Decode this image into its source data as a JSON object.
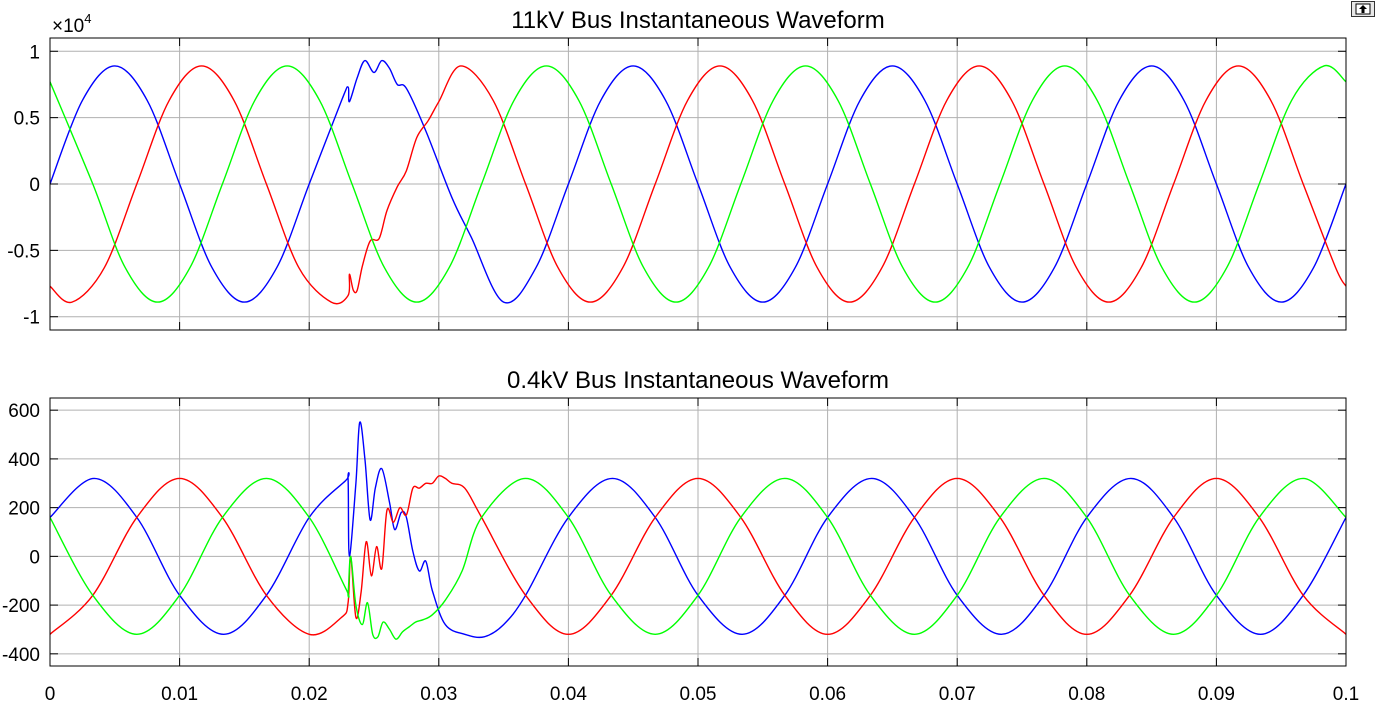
{
  "toolbar": {
    "undock_icon": "undock-arrow-icon"
  },
  "colors": {
    "phase_a": "#ff0000",
    "phase_b": "#0000ff",
    "phase_c": "#00ff00",
    "grid": "#b0b0b0",
    "axes": "#000000"
  },
  "chart_data": [
    {
      "type": "line",
      "title": "11kV Bus Instantaneous Waveform",
      "xlabel": "",
      "ylabel": "",
      "y_exponent_label": "×10",
      "y_exponent_power": "4",
      "xlim": [
        0,
        0.1
      ],
      "ylim": [
        -1.1,
        1.1
      ],
      "xticks": [
        0,
        0.01,
        0.02,
        0.03,
        0.04,
        0.05,
        0.06,
        0.07,
        0.08,
        0.09,
        0.1
      ],
      "yticks": [
        -1,
        -0.5,
        0,
        0.5,
        1
      ],
      "ytick_labels": [
        "-1",
        "-0.5",
        "0",
        "0.5",
        "1"
      ],
      "grid": true,
      "legend": "none",
      "series": [
        {
          "color": "#0000ff",
          "x": [
            0,
            0.0025,
            0.005,
            0.0075,
            0.01,
            0.0125,
            0.015,
            0.0175,
            0.02,
            0.0225,
            0.023,
            0.0231,
            0.0237,
            0.0243,
            0.025,
            0.0256,
            0.0262,
            0.0268,
            0.0275,
            0.029,
            0.031,
            0.0325,
            0.035,
            0.0375,
            0.04,
            0.0425,
            0.045,
            0.0475,
            0.05,
            0.0525,
            0.055,
            0.0575,
            0.06,
            0.0625,
            0.065,
            0.0675,
            0.07,
            0.0725,
            0.075,
            0.0775,
            0.08,
            0.0825,
            0.085,
            0.0875,
            0.09,
            0.0925,
            0.095,
            0.0975,
            0.1
          ],
          "y": [
            0,
            0.63,
            0.89,
            0.63,
            0,
            -0.63,
            -0.89,
            -0.63,
            0,
            0.63,
            0.73,
            0.62,
            0.8,
            0.93,
            0.84,
            0.93,
            0.87,
            0.75,
            0.72,
            0.4,
            -0.1,
            -0.4,
            -0.89,
            -0.63,
            0,
            0.63,
            0.89,
            0.63,
            0,
            -0.63,
            -0.89,
            -0.63,
            0,
            0.63,
            0.89,
            0.63,
            0,
            -0.63,
            -0.89,
            -0.63,
            0,
            0.63,
            0.89,
            0.63,
            0,
            -0.63,
            -0.89,
            -0.63,
            0
          ]
        },
        {
          "color": "#ff0000",
          "x": [
            0,
            0.0017,
            0.0042,
            0.0067,
            0.0092,
            0.0117,
            0.0142,
            0.0167,
            0.0192,
            0.0217,
            0.023,
            0.0231,
            0.0234,
            0.0237,
            0.0241,
            0.0247,
            0.0254,
            0.026,
            0.0268,
            0.0275,
            0.0283,
            0.0292,
            0.03,
            0.0317,
            0.0342,
            0.0367,
            0.0392,
            0.0417,
            0.0442,
            0.0467,
            0.0492,
            0.0517,
            0.0542,
            0.0567,
            0.0592,
            0.0617,
            0.0642,
            0.0667,
            0.0692,
            0.0717,
            0.0742,
            0.0767,
            0.0792,
            0.0817,
            0.0842,
            0.0867,
            0.0892,
            0.0917,
            0.0942,
            0.0967,
            0.0992,
            0.1
          ],
          "y": [
            -0.77,
            -0.89,
            -0.63,
            0,
            0.63,
            0.89,
            0.63,
            0,
            -0.63,
            -0.89,
            -0.84,
            -0.68,
            -0.8,
            -0.8,
            -0.62,
            -0.43,
            -0.41,
            -0.2,
            -0.02,
            0.1,
            0.35,
            0.48,
            0.62,
            0.89,
            0.63,
            0,
            -0.63,
            -0.89,
            -0.63,
            0,
            0.63,
            0.89,
            0.63,
            0,
            -0.63,
            -0.89,
            -0.63,
            0,
            0.63,
            0.89,
            0.63,
            0,
            -0.63,
            -0.89,
            -0.63,
            0,
            0.63,
            0.89,
            0.63,
            0,
            -0.63,
            -0.77
          ]
        },
        {
          "color": "#00ff00",
          "x": [
            0,
            0.0033,
            0.0058,
            0.0083,
            0.0108,
            0.0133,
            0.0158,
            0.0183,
            0.0208,
            0.0233,
            0.0258,
            0.0283,
            0.0308,
            0.0333,
            0.0358,
            0.0383,
            0.0408,
            0.0433,
            0.0458,
            0.0483,
            0.0508,
            0.0533,
            0.0558,
            0.0583,
            0.0608,
            0.0633,
            0.0658,
            0.0683,
            0.0708,
            0.0733,
            0.0758,
            0.0783,
            0.0808,
            0.0833,
            0.0858,
            0.0883,
            0.0908,
            0.0933,
            0.0958,
            0.0983,
            0.1
          ],
          "y": [
            0.77,
            0,
            -0.63,
            -0.89,
            -0.63,
            0,
            0.63,
            0.89,
            0.63,
            0,
            -0.63,
            -0.89,
            -0.63,
            0,
            0.63,
            0.89,
            0.63,
            0,
            -0.63,
            -0.89,
            -0.63,
            0,
            0.63,
            0.89,
            0.63,
            0,
            -0.63,
            -0.89,
            -0.63,
            0,
            0.63,
            0.89,
            0.63,
            0,
            -0.63,
            -0.89,
            -0.63,
            0,
            0.63,
            0.89,
            0.77
          ]
        }
      ]
    },
    {
      "type": "line",
      "title": "0.4kV Bus Instantaneous Waveform",
      "xlabel": "",
      "ylabel": "",
      "xlim": [
        0,
        0.1
      ],
      "ylim": [
        -450,
        650
      ],
      "xticks": [
        0,
        0.01,
        0.02,
        0.03,
        0.04,
        0.05,
        0.06,
        0.07,
        0.08,
        0.09,
        0.1
      ],
      "xtick_labels": [
        "0",
        "0.01",
        "0.02",
        "0.03",
        "0.04",
        "0.05",
        "0.06",
        "0.07",
        "0.08",
        "0.09",
        "0.1"
      ],
      "yticks": [
        -400,
        -200,
        0,
        200,
        400,
        600
      ],
      "ytick_labels": [
        "-400",
        "-200",
        "0",
        "200",
        "400",
        "600"
      ],
      "grid": true,
      "legend": "none",
      "series": [
        {
          "color": "#0000ff",
          "x": [
            0,
            0.0034,
            0.0067,
            0.01,
            0.0134,
            0.0167,
            0.02,
            0.0228,
            0.023,
            0.0231,
            0.0236,
            0.0239,
            0.0243,
            0.0247,
            0.0251,
            0.0256,
            0.0262,
            0.0266,
            0.0271,
            0.0275,
            0.028,
            0.0285,
            0.029,
            0.0295,
            0.0305,
            0.032,
            0.0335,
            0.035,
            0.0367,
            0.04,
            0.0434,
            0.0467,
            0.05,
            0.0534,
            0.0567,
            0.06,
            0.0634,
            0.0667,
            0.07,
            0.0734,
            0.0767,
            0.08,
            0.0834,
            0.0867,
            0.09,
            0.0934,
            0.0967,
            0.1
          ],
          "y": [
            160,
            320,
            160,
            -160,
            -320,
            -160,
            160,
            310,
            315,
            0,
            300,
            550,
            400,
            150,
            280,
            360,
            220,
            110,
            180,
            160,
            20,
            -60,
            -20,
            -140,
            -280,
            -320,
            -330,
            -280,
            -160,
            160,
            320,
            160,
            -160,
            -320,
            -160,
            160,
            320,
            160,
            -160,
            -320,
            -160,
            160,
            320,
            160,
            -160,
            -320,
            -160,
            160
          ]
        },
        {
          "color": "#ff0000",
          "x": [
            0,
            0.0033,
            0.0067,
            0.01,
            0.0133,
            0.0167,
            0.02,
            0.0225,
            0.023,
            0.0232,
            0.0236,
            0.024,
            0.0244,
            0.0248,
            0.0252,
            0.0256,
            0.026,
            0.0265,
            0.027,
            0.0275,
            0.028,
            0.0285,
            0.029,
            0.0295,
            0.03,
            0.0305,
            0.031,
            0.032,
            0.0333,
            0.0367,
            0.04,
            0.0433,
            0.0467,
            0.05,
            0.0533,
            0.0567,
            0.06,
            0.0633,
            0.0667,
            0.07,
            0.0733,
            0.0767,
            0.08,
            0.0833,
            0.0867,
            0.09,
            0.0933,
            0.0967,
            0.1
          ],
          "y": [
            -320,
            -160,
            160,
            320,
            160,
            -160,
            -320,
            -250,
            -190,
            0,
            -250,
            -150,
            60,
            -80,
            40,
            -50,
            190,
            140,
            200,
            170,
            280,
            280,
            300,
            300,
            330,
            320,
            300,
            280,
            160,
            -160,
            -320,
            -160,
            160,
            320,
            160,
            -160,
            -320,
            -160,
            160,
            320,
            160,
            -160,
            -320,
            -160,
            160,
            320,
            160,
            -160,
            -320
          ]
        },
        {
          "color": "#00ff00",
          "x": [
            0,
            0.0033,
            0.0067,
            0.01,
            0.0133,
            0.0167,
            0.02,
            0.0228,
            0.023,
            0.0232,
            0.0236,
            0.0241,
            0.0245,
            0.0249,
            0.0253,
            0.0257,
            0.0262,
            0.0267,
            0.0272,
            0.0277,
            0.0282,
            0.0288,
            0.0295,
            0.0305,
            0.0318,
            0.0333,
            0.0367,
            0.04,
            0.0433,
            0.0467,
            0.05,
            0.0533,
            0.0567,
            0.06,
            0.0633,
            0.0667,
            0.07,
            0.0733,
            0.0767,
            0.08,
            0.0833,
            0.0867,
            0.09,
            0.0933,
            0.0967,
            0.1
          ],
          "y": [
            160,
            -160,
            -320,
            -160,
            160,
            320,
            160,
            -130,
            -150,
            0,
            -200,
            -280,
            -190,
            -320,
            -330,
            -270,
            -300,
            -340,
            -310,
            -290,
            -270,
            -260,
            -240,
            -180,
            -60,
            160,
            320,
            160,
            -160,
            -320,
            -160,
            160,
            320,
            160,
            -160,
            -320,
            -160,
            160,
            320,
            160,
            -160,
            -320,
            -160,
            160,
            320,
            160
          ]
        }
      ]
    }
  ]
}
